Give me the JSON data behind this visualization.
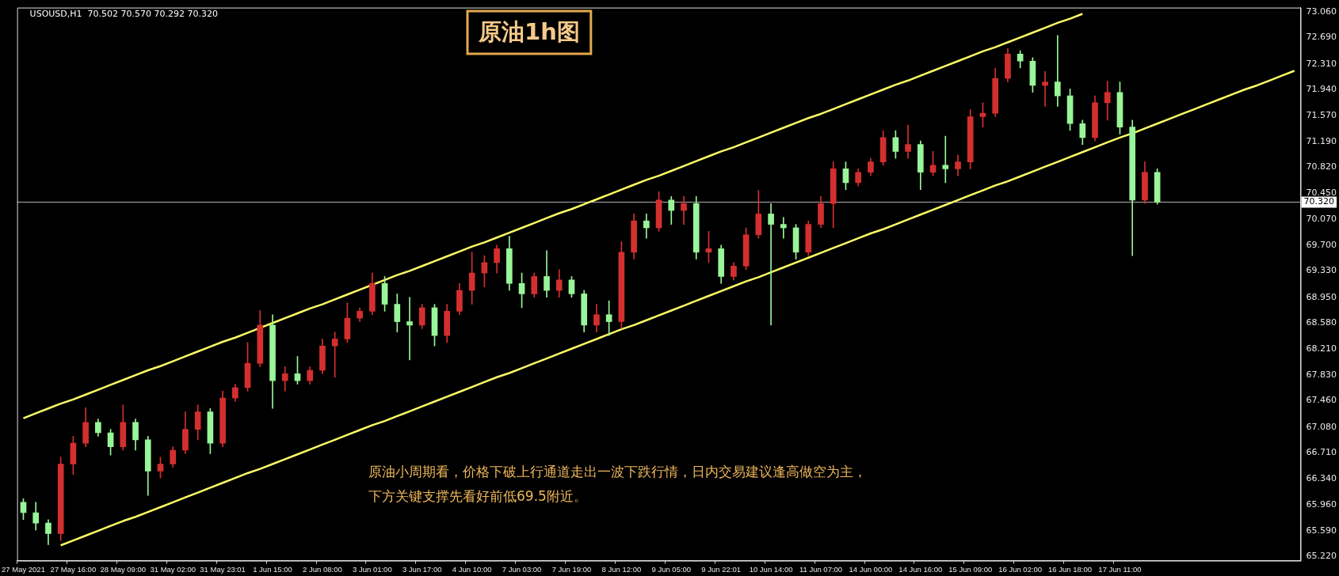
{
  "chart_data": {
    "type": "candlestick",
    "title": "原油1h图",
    "subtitle": "USOUSD,H1  70.502 70.570 70.292 70.320",
    "annotations": [
      "原油小周期看，价格下破上行通道走出一波下跌行情，日内交易建议逢高做空为主，",
      "下方关键支撑先看好前低69.5附近。"
    ],
    "categories": [
      "27 May 2021",
      null,
      null,
      null,
      "27 May 16:00",
      null,
      null,
      null,
      "28 May 09:00",
      null,
      null,
      null,
      "31 May 02:00",
      null,
      null,
      null,
      "31 May 23:01",
      null,
      null,
      null,
      "1 Jun 15:00",
      null,
      null,
      null,
      "2 Jun 08:00",
      null,
      null,
      null,
      "3 Jun 01:00",
      null,
      null,
      null,
      "3 Jun 17:00",
      null,
      null,
      null,
      "4 Jun 10:00",
      null,
      null,
      null,
      "7 Jun 03:00",
      null,
      null,
      null,
      "7 Jun 19:00",
      null,
      null,
      null,
      "8 Jun 12:00",
      null,
      null,
      null,
      "9 Jun 05:00",
      null,
      null,
      null,
      "9 Jun 22:01",
      null,
      null,
      null,
      "10 Jun 14:00",
      null,
      null,
      null,
      "11 Jun 07:00",
      null,
      null,
      null,
      "14 Jun 00:00",
      null,
      null,
      null,
      "14 Jun 16:00",
      null,
      null,
      null,
      "15 Jun 09:00",
      null,
      null,
      null,
      "16 Jun 02:00",
      null,
      null,
      null,
      "16 Jun 18:00",
      null,
      null,
      null,
      "17 Jun 11:00",
      null,
      null,
      null,
      null,
      null,
      null,
      null,
      null,
      null,
      null,
      null,
      null,
      null,
      null
    ],
    "ohlc": [
      [
        66.0,
        66.05,
        65.75,
        65.85
      ],
      [
        65.85,
        66.0,
        65.6,
        65.7
      ],
      [
        65.7,
        65.75,
        65.39,
        65.55
      ],
      [
        65.55,
        66.65,
        65.45,
        66.55
      ],
      [
        66.55,
        66.95,
        66.4,
        66.85
      ],
      [
        66.85,
        67.36,
        66.8,
        67.15
      ],
      [
        67.15,
        67.2,
        66.95,
        67.0
      ],
      [
        67.0,
        67.05,
        66.68,
        66.8
      ],
      [
        66.8,
        67.4,
        66.75,
        67.15
      ],
      [
        67.15,
        67.2,
        66.75,
        66.9
      ],
      [
        66.9,
        66.95,
        66.1,
        66.45
      ],
      [
        66.45,
        66.65,
        66.35,
        66.55
      ],
      [
        66.55,
        66.8,
        66.5,
        66.75
      ],
      [
        66.75,
        67.3,
        66.7,
        67.05
      ],
      [
        67.05,
        67.4,
        66.9,
        67.3
      ],
      [
        67.3,
        67.35,
        66.7,
        66.85
      ],
      [
        66.85,
        67.6,
        66.8,
        67.5
      ],
      [
        67.5,
        67.7,
        67.45,
        67.65
      ],
      [
        67.65,
        68.3,
        67.6,
        68.0
      ],
      [
        68.0,
        68.76,
        67.95,
        68.55
      ],
      [
        68.55,
        68.7,
        67.35,
        67.75
      ],
      [
        67.75,
        67.95,
        67.6,
        67.85
      ],
      [
        67.85,
        68.1,
        67.7,
        67.75
      ],
      [
        67.75,
        67.95,
        67.7,
        67.9
      ],
      [
        67.9,
        68.35,
        67.85,
        68.25
      ],
      [
        68.25,
        68.45,
        67.8,
        68.35
      ],
      [
        68.35,
        68.87,
        68.3,
        68.65
      ],
      [
        68.65,
        68.8,
        68.6,
        68.75
      ],
      [
        68.75,
        69.3,
        68.7,
        69.15
      ],
      [
        69.15,
        69.25,
        68.75,
        68.85
      ],
      [
        68.85,
        69.0,
        68.45,
        68.6
      ],
      [
        68.6,
        68.95,
        68.05,
        68.55
      ],
      [
        68.55,
        68.85,
        68.5,
        68.8
      ],
      [
        68.8,
        68.85,
        68.25,
        68.4
      ],
      [
        68.4,
        68.85,
        68.3,
        68.75
      ],
      [
        68.75,
        69.15,
        68.7,
        69.05
      ],
      [
        69.05,
        69.6,
        68.85,
        69.3
      ],
      [
        69.3,
        69.55,
        69.1,
        69.45
      ],
      [
        69.45,
        69.7,
        69.3,
        69.65
      ],
      [
        69.65,
        69.83,
        69.05,
        69.15
      ],
      [
        69.15,
        69.3,
        68.8,
        69.0
      ],
      [
        69.0,
        69.3,
        68.95,
        69.25
      ],
      [
        69.25,
        69.62,
        68.95,
        69.05
      ],
      [
        69.05,
        69.35,
        68.95,
        69.2
      ],
      [
        69.2,
        69.25,
        68.95,
        69.0
      ],
      [
        69.0,
        69.05,
        68.45,
        68.55
      ],
      [
        68.55,
        68.85,
        68.45,
        68.7
      ],
      [
        68.7,
        68.9,
        68.4,
        68.6
      ],
      [
        68.6,
        69.75,
        68.5,
        69.6
      ],
      [
        69.6,
        70.15,
        69.5,
        70.05
      ],
      [
        70.05,
        70.15,
        69.8,
        69.95
      ],
      [
        69.95,
        70.47,
        69.9,
        70.35
      ],
      [
        70.35,
        70.4,
        70.0,
        70.2
      ],
      [
        70.2,
        70.4,
        70.0,
        70.3
      ],
      [
        70.3,
        70.4,
        69.5,
        69.6
      ],
      [
        69.6,
        69.9,
        69.45,
        69.65
      ],
      [
        69.65,
        69.7,
        69.15,
        69.25
      ],
      [
        69.25,
        69.45,
        69.2,
        69.4
      ],
      [
        69.4,
        69.95,
        69.35,
        69.85
      ],
      [
        69.85,
        70.49,
        69.8,
        70.15
      ],
      [
        70.15,
        70.3,
        68.55,
        70.0
      ],
      [
        70.0,
        70.1,
        69.8,
        69.95
      ],
      [
        69.95,
        70.0,
        69.5,
        69.6
      ],
      [
        69.6,
        70.05,
        69.55,
        70.0
      ],
      [
        70.0,
        70.4,
        69.95,
        70.3
      ],
      [
        70.3,
        70.9,
        69.95,
        70.8
      ],
      [
        70.8,
        70.9,
        70.5,
        70.6
      ],
      [
        70.6,
        70.8,
        70.55,
        70.75
      ],
      [
        70.75,
        70.95,
        70.7,
        70.9
      ],
      [
        70.9,
        71.35,
        70.85,
        71.25
      ],
      [
        71.25,
        71.35,
        70.95,
        71.05
      ],
      [
        71.05,
        71.43,
        70.95,
        71.15
      ],
      [
        71.15,
        71.2,
        70.5,
        70.75
      ],
      [
        70.75,
        71.05,
        70.7,
        70.85
      ],
      [
        70.85,
        71.27,
        70.6,
        70.8
      ],
      [
        70.8,
        71.0,
        70.7,
        70.9
      ],
      [
        70.9,
        71.65,
        70.8,
        71.55
      ],
      [
        71.55,
        71.75,
        71.4,
        71.6
      ],
      [
        71.6,
        72.25,
        71.55,
        72.1
      ],
      [
        72.1,
        72.53,
        72.05,
        72.45
      ],
      [
        72.45,
        72.5,
        72.25,
        72.35
      ],
      [
        72.35,
        72.4,
        71.9,
        72.0
      ],
      [
        72.0,
        72.2,
        71.7,
        72.05
      ],
      [
        72.05,
        72.72,
        71.7,
        71.85
      ],
      [
        71.85,
        71.95,
        71.35,
        71.45
      ],
      [
        71.45,
        71.5,
        71.15,
        71.25
      ],
      [
        71.25,
        71.85,
        71.2,
        71.75
      ],
      [
        71.75,
        72.06,
        71.5,
        71.9
      ],
      [
        71.9,
        72.05,
        71.3,
        71.4
      ],
      [
        71.4,
        71.5,
        69.55,
        70.35
      ],
      [
        70.35,
        70.9,
        70.3,
        70.75
      ],
      [
        70.75,
        70.8,
        70.29,
        70.32
      ],
      null,
      null,
      null,
      null,
      null,
      null,
      null,
      null,
      null,
      null,
      null
    ],
    "colors": [
      "#98f598",
      "#98f598",
      "#98f598",
      "#d42f2f",
      "#d42f2f",
      "#d42f2f",
      "#98f598",
      "#98f598",
      "#d42f2f",
      "#98f598",
      "#98f598",
      "#d42f2f",
      "#d42f2f",
      "#d42f2f",
      "#d42f2f",
      "#98f598",
      "#d42f2f",
      "#d42f2f",
      "#d42f2f",
      "#d42f2f",
      "#98f598",
      "#d42f2f",
      "#98f598",
      "#d42f2f",
      "#d42f2f",
      "#d42f2f",
      "#d42f2f",
      "#d42f2f",
      "#d42f2f",
      "#98f598",
      "#98f598",
      "#98f598",
      "#d42f2f",
      "#98f598",
      "#d42f2f",
      "#d42f2f",
      "#d42f2f",
      "#d42f2f",
      "#d42f2f",
      "#98f598",
      "#98f598",
      "#d42f2f",
      "#98f598",
      "#d42f2f",
      "#98f598",
      "#98f598",
      "#d42f2f",
      "#98f598",
      "#d42f2f",
      "#d42f2f",
      "#98f598",
      "#d42f2f",
      "#98f598",
      "#d42f2f",
      "#98f598",
      "#d42f2f",
      "#98f598",
      "#d42f2f",
      "#d42f2f",
      "#d42f2f",
      "#98f598",
      "#98f598",
      "#98f598",
      "#d42f2f",
      "#d42f2f",
      "#d42f2f",
      "#98f598",
      "#d42f2f",
      "#d42f2f",
      "#d42f2f",
      "#98f598",
      "#d42f2f",
      "#98f598",
      "#d42f2f",
      "#98f598",
      "#d42f2f",
      "#d42f2f",
      "#d42f2f",
      "#d42f2f",
      "#d42f2f",
      "#98f598",
      "#98f598",
      "#d42f2f",
      "#98f598",
      "#98f598",
      "#98f598",
      "#d42f2f",
      "#d42f2f",
      "#98f598",
      "#98f598",
      "#d42f2f",
      "#98f598",
      null,
      null,
      null,
      null,
      null,
      null,
      null,
      null,
      null,
      null,
      null
    ],
    "series": [
      {
        "type": "line",
        "color": "#ffff66",
        "values": [
          67.21,
          67.28,
          67.35,
          67.42,
          67.48,
          67.55,
          67.62,
          67.69,
          67.76,
          67.83,
          67.9,
          67.96,
          68.03,
          68.1,
          68.17,
          68.24,
          68.31,
          68.37,
          68.44,
          68.51,
          68.58,
          68.65,
          68.72,
          68.79,
          68.85,
          68.92,
          68.99,
          69.06,
          69.13,
          69.2,
          69.27,
          69.33,
          69.4,
          69.47,
          69.54,
          69.61,
          69.68,
          69.74,
          69.81,
          69.88,
          69.95,
          70.02,
          70.09,
          70.16,
          70.22,
          70.29,
          70.36,
          70.43,
          70.5,
          70.57,
          70.64,
          70.7,
          70.77,
          70.84,
          70.91,
          70.98,
          71.05,
          71.11,
          71.18,
          71.25,
          71.32,
          71.39,
          71.46,
          71.53,
          71.59,
          71.66,
          71.73,
          71.8,
          71.87,
          71.94,
          72.01,
          72.07,
          72.14,
          72.21,
          72.28,
          72.35,
          72.42,
          72.49,
          72.55,
          72.62,
          72.69,
          72.76,
          72.83,
          72.9,
          72.96,
          73.03,
          null,
          null,
          null,
          null,
          null,
          null,
          null,
          null,
          null,
          null,
          null,
          null,
          null,
          null,
          null,
          null,
          null
        ]
      },
      {
        "type": "line",
        "color": "#ffff66",
        "values": [
          null,
          null,
          null,
          65.38,
          65.45,
          65.52,
          65.59,
          65.66,
          65.73,
          65.79,
          65.86,
          65.93,
          66.0,
          66.07,
          66.14,
          66.21,
          66.28,
          66.35,
          66.42,
          66.48,
          66.55,
          66.62,
          66.69,
          66.76,
          66.83,
          66.9,
          66.97,
          67.04,
          67.11,
          67.17,
          67.24,
          67.31,
          67.38,
          67.45,
          67.52,
          67.59,
          67.66,
          67.73,
          67.8,
          67.86,
          67.93,
          68.0,
          68.07,
          68.14,
          68.21,
          68.28,
          68.35,
          68.42,
          68.49,
          68.55,
          68.62,
          68.69,
          68.76,
          68.83,
          68.9,
          68.97,
          69.04,
          69.11,
          69.18,
          69.24,
          69.31,
          69.38,
          69.45,
          69.52,
          69.59,
          69.66,
          69.73,
          69.8,
          69.87,
          69.93,
          70.0,
          70.07,
          70.14,
          70.21,
          70.28,
          70.35,
          70.42,
          70.49,
          70.56,
          70.62,
          70.69,
          70.76,
          70.83,
          70.9,
          70.97,
          71.04,
          71.11,
          71.18,
          71.25,
          71.31,
          71.38,
          71.45,
          71.52,
          71.59,
          71.66,
          71.73,
          71.8,
          71.87,
          71.94,
          72.0,
          72.07,
          72.14,
          72.21
        ]
      }
    ],
    "ylim": [
      65.16,
      73.12
    ],
    "yticks": [
      {
        "value": 65.22,
        "label": "65.220"
      },
      {
        "value": 65.59,
        "label": "65.590"
      },
      {
        "value": 65.96,
        "label": "65.960"
      },
      {
        "value": 66.34,
        "label": "66.340"
      },
      {
        "value": 66.71,
        "label": "66.710"
      },
      {
        "value": 67.08,
        "label": "67.080"
      },
      {
        "value": 67.46,
        "label": "67.460"
      },
      {
        "value": 67.83,
        "label": "67.830"
      },
      {
        "value": 68.21,
        "label": "68.210"
      },
      {
        "value": 68.58,
        "label": "68.580"
      },
      {
        "value": 68.95,
        "label": "68.950"
      },
      {
        "value": 69.33,
        "label": "69.330"
      },
      {
        "value": 69.7,
        "label": "69.700"
      },
      {
        "value": 70.07,
        "label": "70.070"
      },
      {
        "value": 70.45,
        "label": "70.450"
      },
      {
        "value": 70.82,
        "label": "70.820"
      },
      {
        "value": 71.19,
        "label": "71.190"
      },
      {
        "value": 71.57,
        "label": "71.570"
      },
      {
        "value": 71.94,
        "label": "71.940"
      },
      {
        "value": 72.31,
        "label": "72.310"
      },
      {
        "value": 72.69,
        "label": "72.690"
      },
      {
        "value": 73.06,
        "label": "73.060"
      }
    ],
    "ref_lines": [
      {
        "axis": "y",
        "value": 70.32,
        "label": "70.320",
        "color": "#b0b0b0"
      }
    ]
  }
}
